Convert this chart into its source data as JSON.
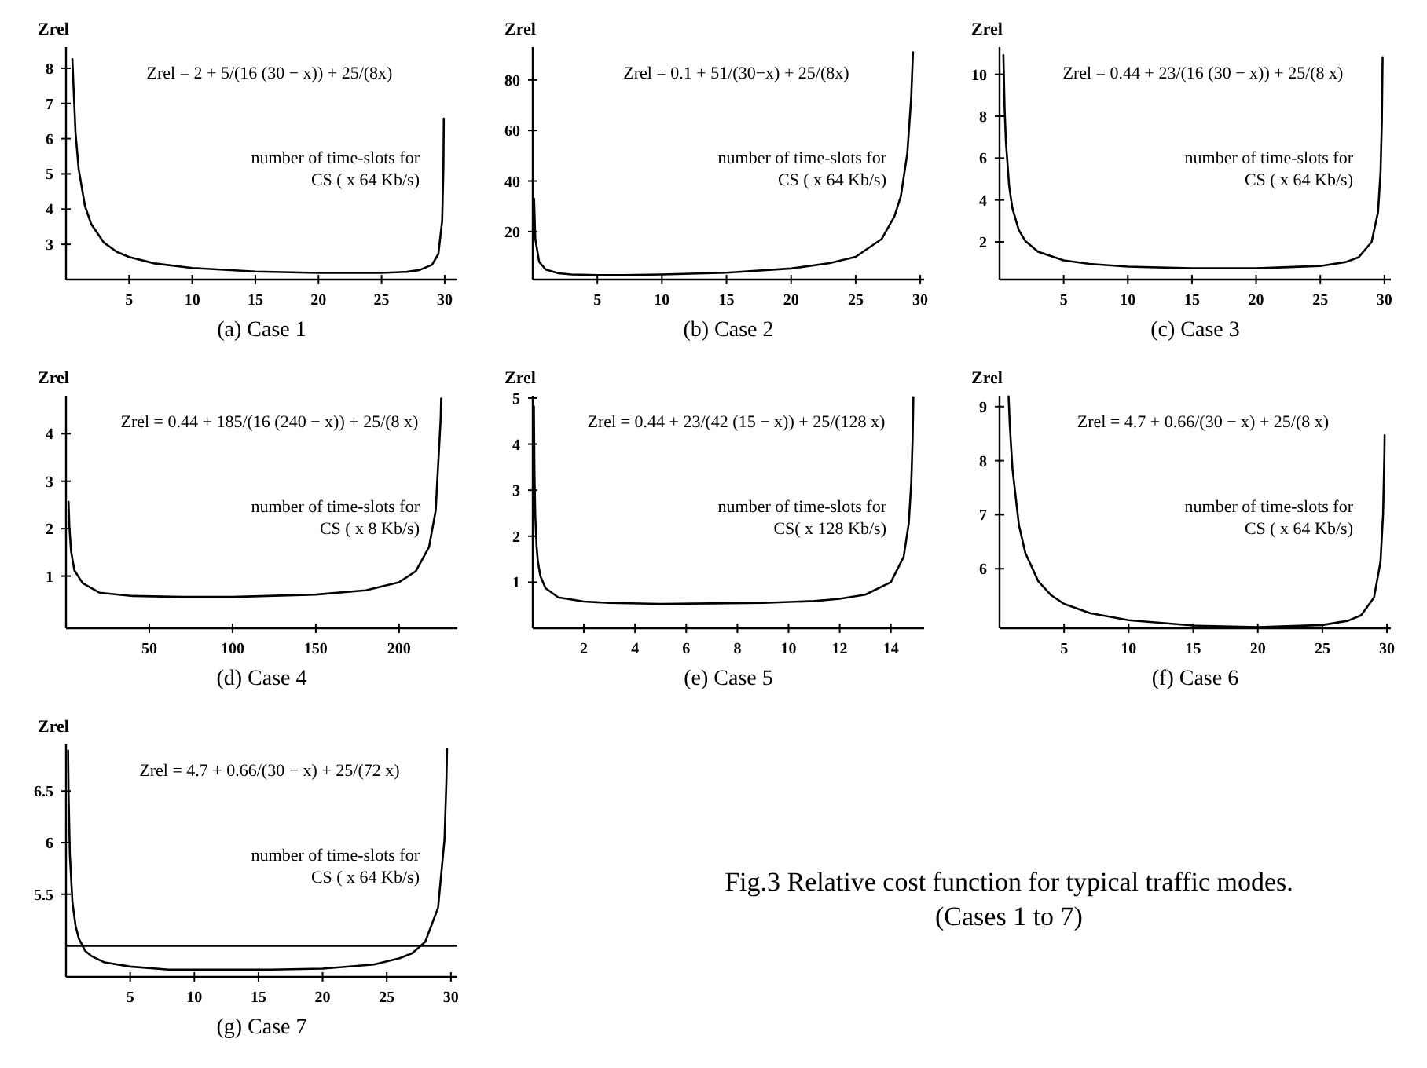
{
  "chart_data": [
    {
      "type": "line",
      "title": "(a) Case 1",
      "ylabel": "Zrel",
      "xlabel": "number of time-slots for\nCS ( x  64 Kb/s)",
      "annotations": [
        "Zrel = 2 + 5/(16 (30 − x)) + 25/(8x)"
      ],
      "xlim": [
        0,
        31
      ],
      "ylim": [
        2,
        8.6
      ],
      "xticks": [
        5,
        10,
        15,
        20,
        25,
        30
      ],
      "yticks": [
        3,
        4,
        5,
        6,
        7,
        8
      ],
      "x": [
        0.5,
        0.75,
        1,
        1.5,
        2,
        3,
        4,
        5,
        7,
        10,
        15,
        20,
        25,
        27,
        28,
        29,
        29.5,
        29.8,
        29.9,
        29.93
      ],
      "series": [
        {
          "color": "#000000",
          "values": [
            8.26,
            6.18,
            5.14,
            4.09,
            3.57,
            3.05,
            2.79,
            2.64,
            2.46,
            2.33,
            2.23,
            2.19,
            2.19,
            2.22,
            2.27,
            2.42,
            2.73,
            3.67,
            5.23,
            6.57
          ]
        }
      ]
    },
    {
      "type": "line",
      "title": "(b) Case 2",
      "ylabel": "Zrel",
      "xlabel": "number of time-slots for\nCS ( x  64 Kb/s)",
      "annotations": [
        "Zrel = 0.1 + 51/(30−x) + 25/(8x)"
      ],
      "xlim": [
        0,
        30.3
      ],
      "ylim": [
        1,
        93
      ],
      "xticks": [
        5,
        10,
        15,
        20,
        25,
        30
      ],
      "yticks": [
        20,
        40,
        60,
        80
      ],
      "x": [
        0.1,
        0.2,
        0.5,
        1,
        2,
        3,
        5,
        7,
        10,
        15,
        20,
        23,
        25,
        27,
        28,
        28.5,
        29,
        29.3,
        29.44
      ],
      "series": [
        {
          "color": "#000000",
          "values": [
            33,
            17,
            8,
            5,
            3.5,
            3,
            2.8,
            2.8,
            3,
            3.7,
            5.4,
            7.5,
            10,
            17,
            26,
            34,
            51,
            73,
            91
          ]
        }
      ]
    },
    {
      "type": "line",
      "title": "(c) Case 3",
      "ylabel": "Zrel",
      "xlabel": "number of time-slots for\nCS ( x  64 Kb/s)",
      "annotations": [
        "Zrel = 0.44 + 23/(16 (30 − x)) + 25/(8 x)"
      ],
      "xlim": [
        0,
        30.5
      ],
      "ylim": [
        0.2,
        11.3
      ],
      "xticks": [
        5,
        10,
        15,
        20,
        25,
        30
      ],
      "yticks": [
        2,
        4,
        6,
        8,
        10
      ],
      "x": [
        0.3,
        0.4,
        0.5,
        0.75,
        1,
        1.5,
        2,
        3,
        5,
        7,
        10,
        15,
        20,
        25,
        27,
        28,
        29,
        29.5,
        29.7,
        29.8,
        29.86
      ],
      "series": [
        {
          "color": "#000000",
          "values": [
            10.91,
            8.3,
            6.74,
            4.66,
            3.61,
            2.57,
            2.05,
            1.53,
            1.12,
            0.95,
            0.82,
            0.74,
            0.74,
            0.85,
            1.04,
            1.27,
            1.99,
            3.42,
            5.34,
            7.73,
            10.82
          ]
        }
      ]
    },
    {
      "type": "line",
      "title": "(d) Case 4",
      "ylabel": "Zrel",
      "xlabel": "number of time-slots for\nCS ( x  8 Kb/s)",
      "annotations": [
        "Zrel = 0.44 + 185/(16 (240 − x)) + 25/(8 x)"
      ],
      "xlim": [
        0,
        235
      ],
      "ylim": [
        -0.1,
        4.8
      ],
      "xticks": [
        50,
        100,
        150,
        200
      ],
      "yticks": [
        1,
        2,
        3,
        4
      ],
      "x": [
        1.5,
        2,
        3,
        5,
        10,
        20,
        40,
        70,
        100,
        150,
        180,
        200,
        210,
        218,
        222,
        225,
        225.3
      ],
      "series": [
        {
          "color": "#000000",
          "values": [
            2.57,
            2.05,
            1.53,
            1.12,
            0.85,
            0.65,
            0.58,
            0.56,
            0.56,
            0.61,
            0.7,
            0.87,
            1.1,
            1.61,
            2.38,
            4.31,
            4.74
          ]
        }
      ]
    },
    {
      "type": "line",
      "title": "(e) Case 5",
      "ylabel": "Zrel",
      "xlabel": "number of time-slots for\nCS( x  128 Kb/s)",
      "annotations": [
        "Zrel = 0.44 + 23/(42 (15 − x)) + 25/(128 x)"
      ],
      "xlim": [
        0,
        15.3
      ],
      "ylim": [
        0,
        5.05
      ],
      "xticks": [
        2,
        4,
        6,
        8,
        10,
        12,
        14
      ],
      "yticks": [
        1,
        2,
        3,
        4,
        5
      ],
      "x": [
        0.045,
        0.05,
        0.07,
        0.1,
        0.15,
        0.2,
        0.3,
        0.5,
        1,
        2,
        3,
        5,
        7,
        9,
        11,
        12,
        13,
        14,
        14.5,
        14.7,
        14.8,
        14.85,
        14.88
      ],
      "series": [
        {
          "color": "#000000",
          "values": [
            4.82,
            4.38,
            3.27,
            2.43,
            1.78,
            1.45,
            1.13,
            0.87,
            0.67,
            0.58,
            0.55,
            0.53,
            0.54,
            0.55,
            0.59,
            0.64,
            0.73,
            1,
            1.55,
            2.28,
            3.19,
            4.1,
            5.02
          ]
        }
      ]
    },
    {
      "type": "line",
      "title": "(f) Case 6",
      "ylabel": "Zrel",
      "xlabel": "number of time-slots for\nCS ( x  64 Kb/s)",
      "annotations": [
        "Zrel = 4.7 + 0.66/(30 − x) + 25/(8 x)"
      ],
      "xlim": [
        0,
        30.3
      ],
      "ylim": [
        4.9,
        9.2
      ],
      "xticks": [
        5,
        10,
        15,
        20,
        25,
        30
      ],
      "yticks": [
        6,
        7,
        8,
        9
      ],
      "x": [
        0.7,
        0.8,
        1,
        1.5,
        2,
        3,
        4,
        5,
        7,
        10,
        15,
        20,
        25,
        27,
        28,
        29,
        29.5,
        29.7,
        29.8,
        29.82
      ],
      "series": [
        {
          "color": "#000000",
          "values": [
            9.19,
            8.63,
            7.85,
            6.81,
            6.29,
            5.77,
            5.51,
            5.35,
            5.18,
            5.05,
            4.95,
            4.92,
            4.96,
            5.04,
            5.14,
            5.47,
            6.13,
            7.01,
            8.1,
            8.47
          ]
        }
      ]
    },
    {
      "type": "line",
      "title": "(g) Case 7",
      "ylabel": "Zrel",
      "xlabel": "number of time-slots for\nCS ( x  64 Kb/s)",
      "annotations": [
        "Zrel = 4.7 + 0.66/(30 − x) + 25/(72 x)"
      ],
      "xlim": [
        0,
        30.5
      ],
      "ylim": [
        4.7,
        6.95
      ],
      "xticks": [
        5,
        10,
        15,
        20,
        25,
        30
      ],
      "yticks": [
        5.5,
        6,
        6.5
      ],
      "ref_lines": [
        {
          "axis": "y",
          "value": 5,
          "color": "#000000"
        }
      ],
      "x": [
        0.16,
        0.2,
        0.3,
        0.5,
        0.75,
        1,
        1.5,
        2,
        3,
        5,
        8,
        12,
        16,
        20,
        24,
        26,
        27,
        28,
        29,
        29.5,
        29.65,
        29.7
      ],
      "series": [
        {
          "color": "#000000",
          "values": [
            6.89,
            6.46,
            5.88,
            5.42,
            5.19,
            5.07,
            4.95,
            4.9,
            4.84,
            4.8,
            4.77,
            4.77,
            4.77,
            4.78,
            4.82,
            4.88,
            4.93,
            5.04,
            5.37,
            6.03,
            6.6,
            6.91
          ]
        }
      ]
    },
    {
      "type": "other",
      "title": "Fig.3  Relative cost function for typical traffic modes.",
      "subtitle": "(Cases 1 to 7)"
    }
  ]
}
